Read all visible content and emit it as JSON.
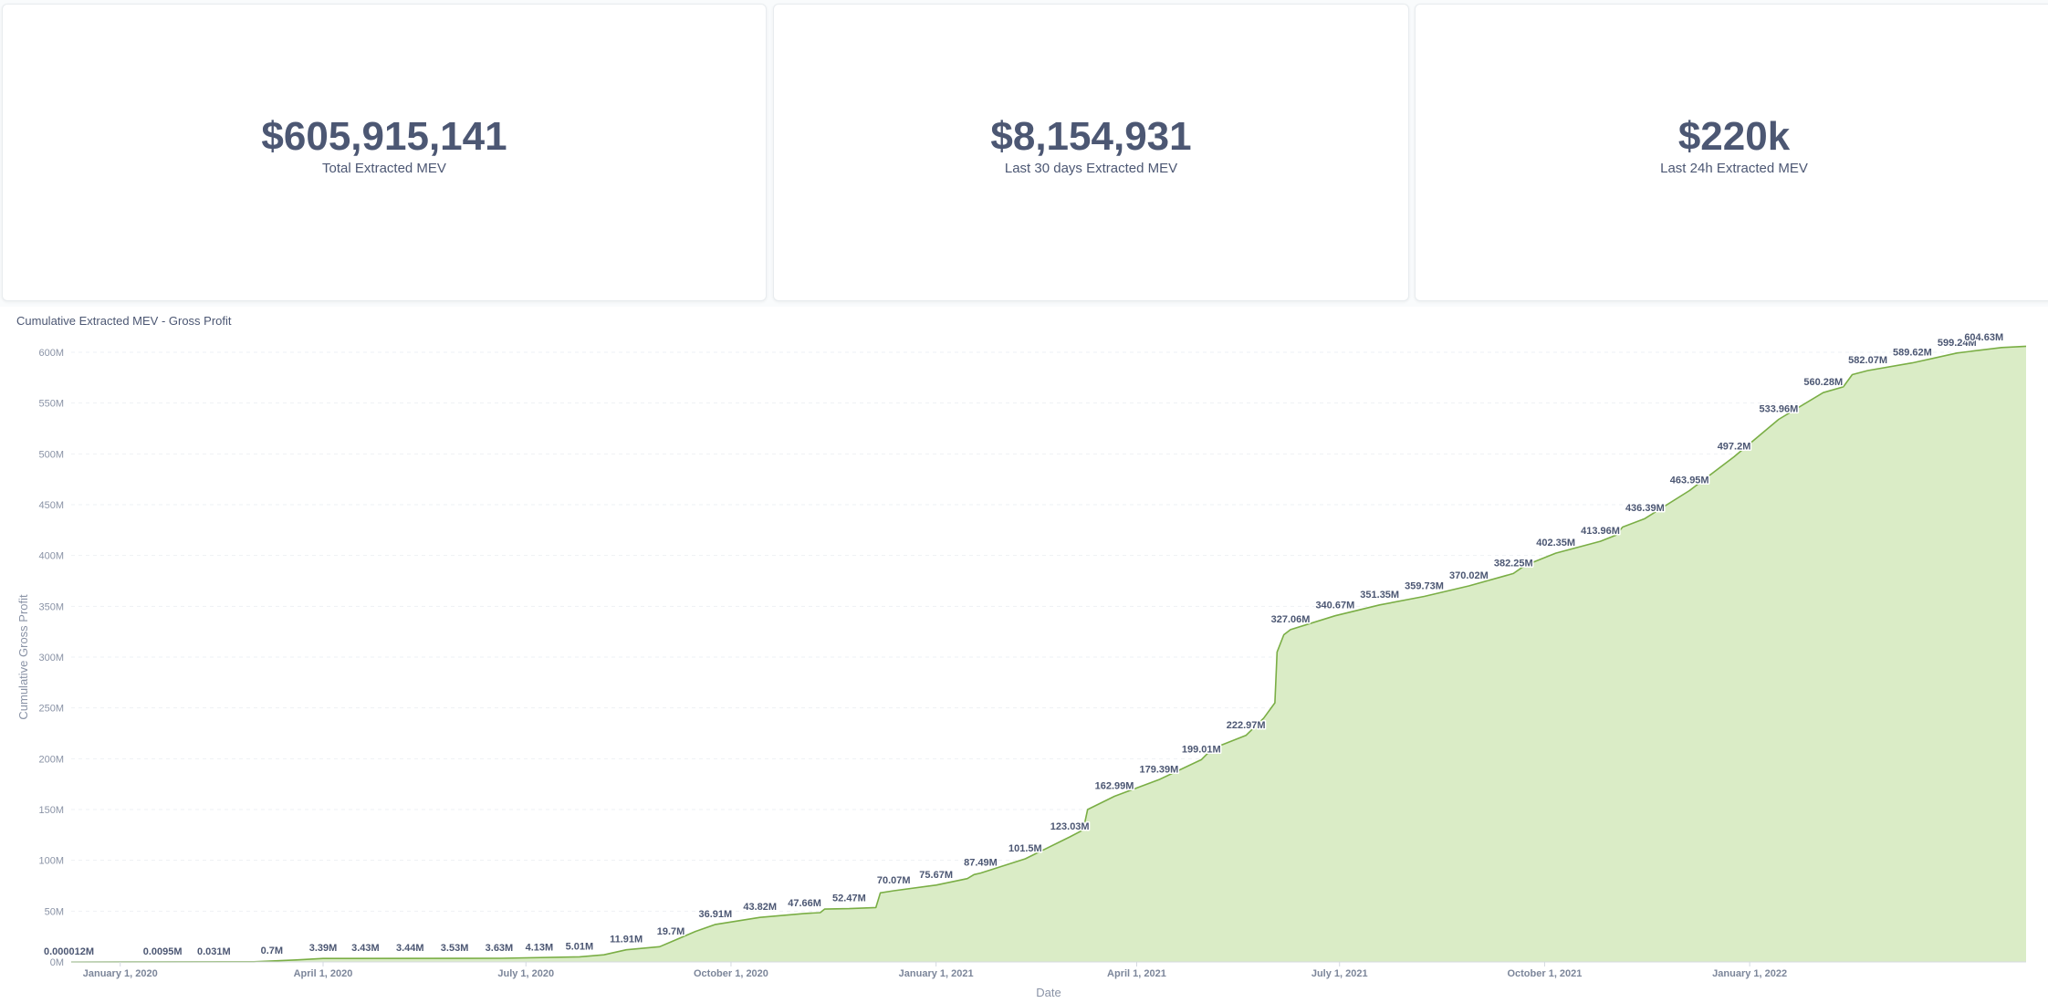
{
  "kpis": [
    {
      "value": "$605,915,141",
      "label": "Total Extracted MEV"
    },
    {
      "value": "$8,154,931",
      "label": "Last 30 days Extracted MEV"
    },
    {
      "value": "$220k",
      "label": "Last 24h Extracted MEV"
    }
  ],
  "colors": {
    "line": "#7aae45",
    "fill": "#daecc6",
    "grid": "#eef1f4",
    "text": "#4c5773"
  },
  "chart_data": {
    "type": "area",
    "title": "Cumulative Extracted MEV - Gross Profit",
    "xlabel": "Date",
    "ylabel": "Cumulative Gross Profit",
    "ylim": [
      0,
      600
    ],
    "y_unit": "M",
    "yticks": [
      "0M",
      "50M",
      "100M",
      "150M",
      "200M",
      "250M",
      "300M",
      "350M",
      "400M",
      "450M",
      "500M",
      "550M",
      "600M"
    ],
    "xlim": [
      "2019-12-10",
      "2022-05-05"
    ],
    "xticks": [
      {
        "date": "2020-01-01",
        "label": "January 1, 2020"
      },
      {
        "date": "2020-04-01",
        "label": "April 1, 2020"
      },
      {
        "date": "2020-07-01",
        "label": "July 1, 2020"
      },
      {
        "date": "2020-10-01",
        "label": "October 1, 2020"
      },
      {
        "date": "2021-01-01",
        "label": "January 1, 2021"
      },
      {
        "date": "2021-04-01",
        "label": "April 1, 2021"
      },
      {
        "date": "2021-07-01",
        "label": "July 1, 2021"
      },
      {
        "date": "2021-10-01",
        "label": "October 1, 2021"
      },
      {
        "date": "2022-01-01",
        "label": "January 1, 2022"
      }
    ],
    "grid": true,
    "legend": "none",
    "series": [
      {
        "values": [
          {
            "date": "2019-12-10",
            "value": 1.2e-05,
            "label": "0.000012M"
          },
          {
            "date": "2020-01-20",
            "value": 0.0095,
            "label": "0.0095M"
          },
          {
            "date": "2020-02-12",
            "value": 0.031,
            "label": "0.031M"
          },
          {
            "date": "2020-03-09",
            "value": 0.7,
            "label": "0.7M"
          },
          {
            "date": "2020-04-01",
            "value": 3.39,
            "label": "3.39M"
          },
          {
            "date": "2020-04-20",
            "value": 3.43,
            "label": "3.43M"
          },
          {
            "date": "2020-05-10",
            "value": 3.44,
            "label": "3.44M"
          },
          {
            "date": "2020-05-30",
            "value": 3.53,
            "label": "3.53M"
          },
          {
            "date": "2020-06-19",
            "value": 3.63,
            "label": "3.63M"
          },
          {
            "date": "2020-07-07",
            "value": 4.13,
            "label": "4.13M"
          },
          {
            "date": "2020-07-25",
            "value": 5.01,
            "label": "5.01M"
          },
          {
            "date": "2020-08-15",
            "value": 11.91,
            "label": "11.91M"
          },
          {
            "date": "2020-09-04",
            "value": 19.7,
            "label": "19.7M"
          },
          {
            "date": "2020-09-24",
            "value": 36.91,
            "label": "36.91M"
          },
          {
            "date": "2020-10-14",
            "value": 43.82,
            "label": "43.82M"
          },
          {
            "date": "2020-11-03",
            "value": 47.66,
            "label": "47.66M"
          },
          {
            "date": "2020-11-23",
            "value": 52.47,
            "label": "52.47M"
          },
          {
            "date": "2020-12-13",
            "value": 70.07,
            "label": "70.07M"
          },
          {
            "date": "2021-01-01",
            "value": 75.67,
            "label": "75.67M"
          },
          {
            "date": "2021-01-21",
            "value": 87.49,
            "label": "87.49M"
          },
          {
            "date": "2021-02-10",
            "value": 101.5,
            "label": "101.5M"
          },
          {
            "date": "2021-03-02",
            "value": 123.03,
            "label": "123.03M"
          },
          {
            "date": "2021-03-22",
            "value": 162.99,
            "label": "162.99M"
          },
          {
            "date": "2021-04-11",
            "value": 179.39,
            "label": "179.39M"
          },
          {
            "date": "2021-04-30",
            "value": 199.01,
            "label": "199.01M"
          },
          {
            "date": "2021-05-20",
            "value": 222.97,
            "label": "222.97M"
          },
          {
            "date": "2021-06-09",
            "value": 327.06,
            "label": "327.06M"
          },
          {
            "date": "2021-06-29",
            "value": 340.67,
            "label": "340.67M"
          },
          {
            "date": "2021-07-19",
            "value": 351.35,
            "label": "351.35M"
          },
          {
            "date": "2021-08-08",
            "value": 359.73,
            "label": "359.73M"
          },
          {
            "date": "2021-08-28",
            "value": 370.02,
            "label": "370.02M"
          },
          {
            "date": "2021-09-17",
            "value": 382.25,
            "label": "382.25M"
          },
          {
            "date": "2021-10-06",
            "value": 402.35,
            "label": "402.35M"
          },
          {
            "date": "2021-10-26",
            "value": 413.96,
            "label": "413.96M"
          },
          {
            "date": "2021-11-15",
            "value": 436.39,
            "label": "436.39M"
          },
          {
            "date": "2021-12-05",
            "value": 463.95,
            "label": "463.95M"
          },
          {
            "date": "2021-12-25",
            "value": 497.2,
            "label": "497.2M"
          },
          {
            "date": "2022-01-14",
            "value": 533.96,
            "label": "533.96M"
          },
          {
            "date": "2022-02-03",
            "value": 560.28,
            "label": "560.28M"
          },
          {
            "date": "2022-02-23",
            "value": 582.07,
            "label": "582.07M"
          },
          {
            "date": "2022-03-15",
            "value": 589.62,
            "label": "589.62M"
          },
          {
            "date": "2022-04-04",
            "value": 599.24,
            "label": "599.24M"
          },
          {
            "date": "2022-04-24",
            "value": 604.63,
            "label": "604.63M"
          }
        ],
        "curve": [
          [
            "2019-12-10",
            0
          ],
          [
            "2020-03-01",
            0.2
          ],
          [
            "2020-03-20",
            2.0
          ],
          [
            "2020-04-01",
            3.39
          ],
          [
            "2020-06-20",
            3.63
          ],
          [
            "2020-07-25",
            5.01
          ],
          [
            "2020-08-05",
            7
          ],
          [
            "2020-08-15",
            11.91
          ],
          [
            "2020-08-30",
            15
          ],
          [
            "2020-09-04",
            19.7
          ],
          [
            "2020-09-15",
            30
          ],
          [
            "2020-09-24",
            36.91
          ],
          [
            "2020-10-14",
            43.82
          ],
          [
            "2020-11-03",
            47.66
          ],
          [
            "2020-11-10",
            48.5
          ],
          [
            "2020-11-12",
            52
          ],
          [
            "2020-11-23",
            52.47
          ],
          [
            "2020-12-05",
            53.5
          ],
          [
            "2020-12-07",
            68
          ],
          [
            "2020-12-13",
            70.07
          ],
          [
            "2021-01-01",
            75.67
          ],
          [
            "2021-01-15",
            82
          ],
          [
            "2021-01-18",
            86
          ],
          [
            "2021-01-21",
            87.49
          ],
          [
            "2021-02-10",
            101.5
          ],
          [
            "2021-03-02",
            123.03
          ],
          [
            "2021-03-08",
            130
          ],
          [
            "2021-03-10",
            150
          ],
          [
            "2021-03-22",
            162.99
          ],
          [
            "2021-04-11",
            179.39
          ],
          [
            "2021-04-30",
            199.01
          ],
          [
            "2021-05-05",
            210
          ],
          [
            "2021-05-20",
            222.97
          ],
          [
            "2021-05-28",
            240
          ],
          [
            "2021-06-02",
            255
          ],
          [
            "2021-06-03",
            305
          ],
          [
            "2021-06-06",
            322
          ],
          [
            "2021-06-09",
            327.06
          ],
          [
            "2021-06-29",
            340.67
          ],
          [
            "2021-07-19",
            351.35
          ],
          [
            "2021-08-08",
            359.73
          ],
          [
            "2021-08-28",
            370.02
          ],
          [
            "2021-09-17",
            382.25
          ],
          [
            "2021-09-22",
            390
          ],
          [
            "2021-10-06",
            402.35
          ],
          [
            "2021-10-26",
            413.96
          ],
          [
            "2021-11-02",
            420
          ],
          [
            "2021-11-05",
            428
          ],
          [
            "2021-11-15",
            436.39
          ],
          [
            "2021-12-05",
            463.95
          ],
          [
            "2021-12-25",
            497.2
          ],
          [
            "2022-01-14",
            533.96
          ],
          [
            "2022-02-03",
            560.28
          ],
          [
            "2022-02-12",
            566
          ],
          [
            "2022-02-16",
            578
          ],
          [
            "2022-02-23",
            582.07
          ],
          [
            "2022-03-15",
            589.62
          ],
          [
            "2022-04-04",
            599.24
          ],
          [
            "2022-04-24",
            604.63
          ],
          [
            "2022-05-05",
            605.9
          ]
        ]
      }
    ]
  }
}
